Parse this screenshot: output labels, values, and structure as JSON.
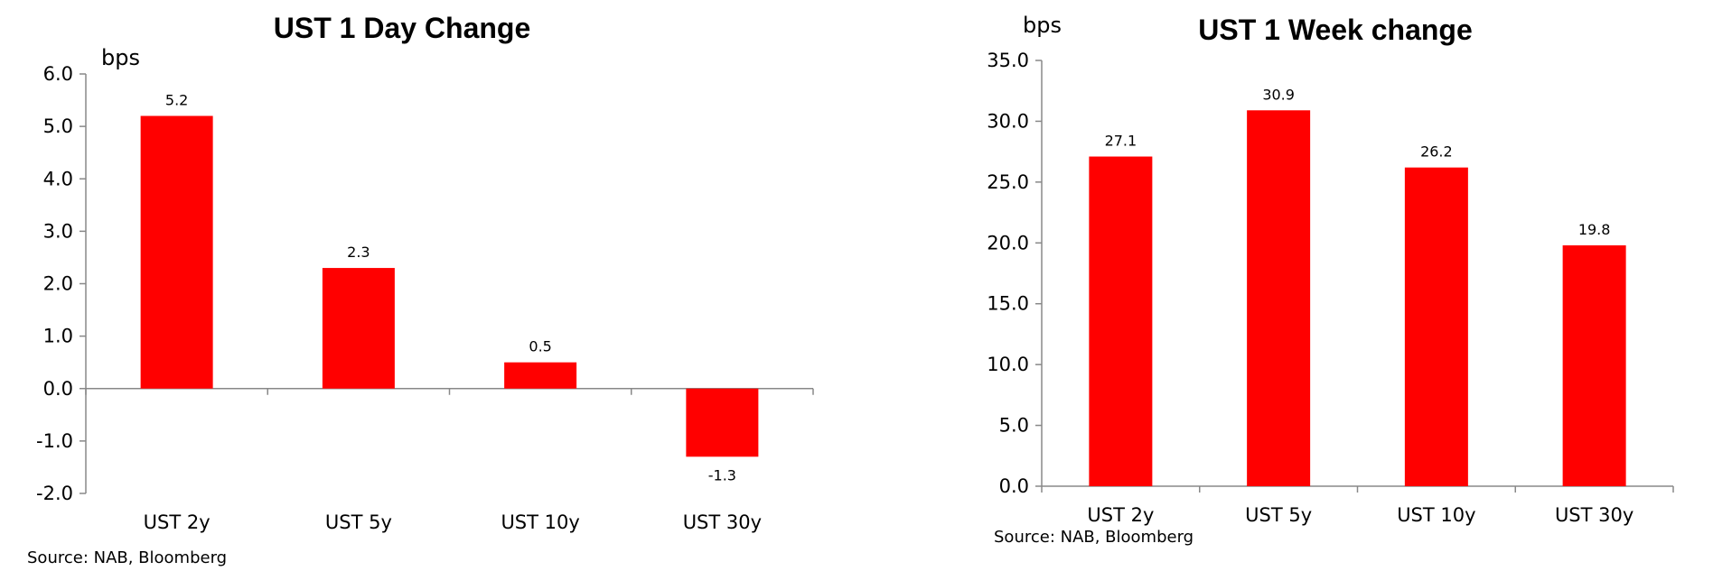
{
  "chart_data": [
    {
      "type": "bar",
      "title": "UST 1 Day Change",
      "ylabel": "bps",
      "categories": [
        "UST 2y",
        "UST 5y",
        "UST 10y",
        "UST 30y"
      ],
      "values": [
        5.2,
        2.3,
        0.5,
        -1.3
      ],
      "ylim": [
        -2.0,
        6.0
      ],
      "yticks": [
        "6.0",
        "5.0",
        "4.0",
        "3.0",
        "2.0",
        "1.0",
        "0.0",
        "-1.0",
        "-2.0"
      ],
      "data_labels": [
        "5.2",
        "2.3",
        "0.5",
        "-1.3"
      ],
      "bar_color": "#ff0000",
      "grid": false,
      "legend": "none",
      "source": "Source: NAB, Bloomberg"
    },
    {
      "type": "bar",
      "title": "UST 1 Week change",
      "ylabel": "bps",
      "categories": [
        "UST 2y",
        "UST 5y",
        "UST 10y",
        "UST 30y"
      ],
      "values": [
        27.1,
        30.9,
        26.2,
        19.8
      ],
      "ylim": [
        0.0,
        35.0
      ],
      "yticks": [
        "35.0",
        "30.0",
        "25.0",
        "20.0",
        "15.0",
        "10.0",
        "5.0",
        "0.0"
      ],
      "data_labels": [
        "27.1",
        "30.9",
        "26.2",
        "19.8"
      ],
      "bar_color": "#ff0000",
      "grid": false,
      "legend": "none",
      "source": "Source: NAB, Bloomberg"
    }
  ]
}
